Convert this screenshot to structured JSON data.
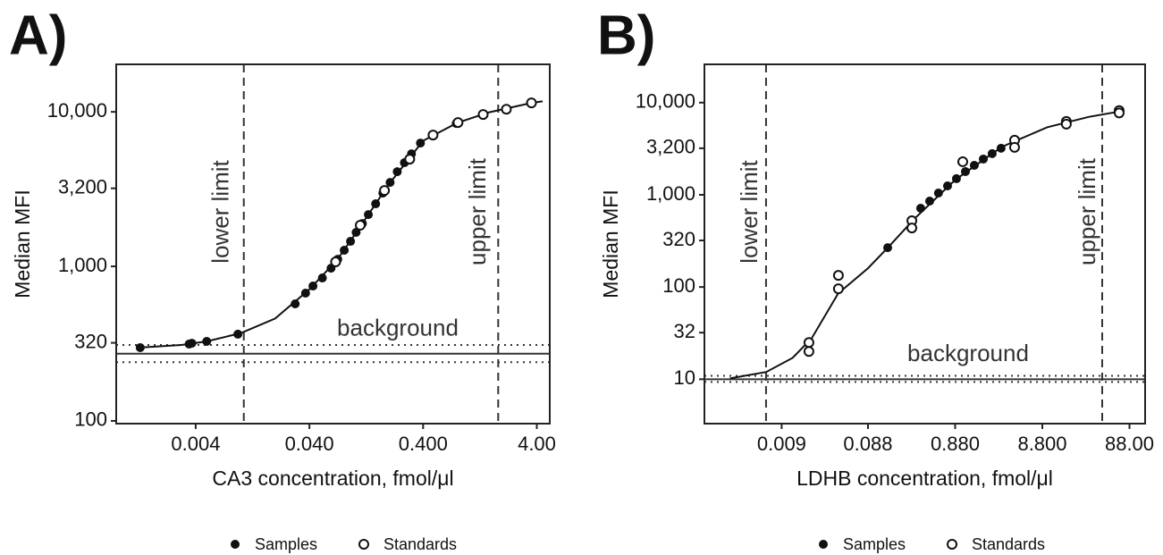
{
  "chart_data": [
    {
      "type": "scatter",
      "title": "A)",
      "ylabel": "Median MFI",
      "xlabel": "CA3 concentration, fmol/μl",
      "xlog": true,
      "ylog": true,
      "grid": false,
      "xlim": [
        0.0008,
        5.2
      ],
      "ylim": [
        96,
        20300
      ],
      "xticks": [
        0.004,
        {
          "value": 0.04,
          "label": "0.040"
        },
        {
          "value": 0.4,
          "label": "0.400"
        },
        {
          "value": 4,
          "label": "4.00"
        }
      ],
      "yticks": [
        100,
        320,
        {
          "value": 1000,
          "label": "1,000"
        },
        {
          "value": 3200,
          "label": "3,200"
        },
        {
          "value": 10000,
          "label": "10,000"
        }
      ],
      "series": [
        {
          "name": "Samples",
          "marker": "filled",
          "color": "#111111",
          "x": [
            0.0013,
            0.0035,
            0.0037,
            0.005,
            0.0094,
            0.03,
            0.037,
            0.043,
            0.052,
            0.062,
            0.071,
            0.081,
            0.092,
            0.103,
            0.117,
            0.132,
            0.153,
            0.177,
            0.205,
            0.237,
            0.274,
            0.316,
            0.379,
            0.782
          ],
          "values": [
            298,
            314,
            318,
            327,
            364,
            572,
            671,
            746,
            841,
            973,
            1112,
            1271,
            1452,
            1660,
            1894,
            2163,
            2541,
            2979,
            3493,
            4102,
            4688,
            5346,
            6281,
            8414
          ]
        },
        {
          "name": "Standards",
          "marker": "open",
          "color": "#111111",
          "x": [
            0.068,
            0.112,
            0.183,
            0.305,
            0.489,
            0.811,
            1.35,
            2.16,
            3.59
          ],
          "values": [
            1069,
            1845,
            3099,
            4942,
            7079,
            8531,
            9616,
            10400,
            11430
          ]
        }
      ],
      "curve": {
        "color": "#111111",
        "x": [
          0.0013,
          0.003,
          0.005,
          0.01,
          0.02,
          0.04,
          0.07,
          0.1,
          0.2,
          0.4,
          0.8,
          1.5,
          3.6,
          4.5
        ],
        "values": [
          298,
          310,
          327,
          370,
          460,
          710,
          1100,
          1600,
          3400,
          6500,
          8500,
          9900,
          11430,
          11700
        ]
      },
      "limits": [
        {
          "value": 0.0106,
          "label": "lower limit"
        },
        {
          "value": 1.83,
          "label": "upper limit"
        }
      ],
      "background": {
        "value": 272,
        "lower": 240,
        "upper": 310,
        "label": "background"
      }
    },
    {
      "type": "scatter",
      "title": "B)",
      "ylabel": "Median MFI",
      "xlabel": "LDHB concentration, fmol/μl",
      "xlog": true,
      "ylog": true,
      "grid": false,
      "xlim": [
        0.00117,
        133
      ],
      "ylim": [
        3.3,
        26000
      ],
      "xticks": [
        0.009,
        0.088,
        {
          "value": 0.88,
          "label": "0.880"
        },
        {
          "value": 8.8,
          "label": "8.800"
        },
        {
          "value": 88,
          "label": "88.00"
        }
      ],
      "yticks": [
        10,
        32,
        100,
        320,
        {
          "value": 1000,
          "label": "1,000"
        },
        {
          "value": 3200,
          "label": "3,200"
        },
        {
          "value": 10000,
          "label": "10,000"
        }
      ],
      "series": [
        {
          "name": "Samples",
          "marker": "filled",
          "color": "#111111",
          "x": [
            0.1481,
            0.354,
            0.449,
            0.566,
            0.72,
            0.911,
            1.155,
            1.46,
            1.852,
            2.34,
            2.96
          ],
          "values": [
            267,
            715,
            855,
            1045,
            1250,
            1496,
            1787,
            2089,
            2443,
            2797,
            3199
          ]
        },
        {
          "name": "Standards",
          "marker": "open",
          "color": "#111111",
          "x": [
            0.0185,
            0.0185,
            0.0403,
            0.0403,
            0.2804,
            0.2804,
            1.076,
            4.23,
            4.23,
            16.6,
            16.6,
            67.0,
            67.0
          ],
          "values": [
            25.0,
            20.0,
            133.7,
            95.7,
            523,
            437,
            2286,
            3908,
            3273,
            6252,
            5846,
            8185,
            7731
          ]
        }
      ],
      "curve": {
        "color": "#111111",
        "x": [
          0.0023,
          0.006,
          0.012,
          0.02,
          0.04,
          0.088,
          0.15,
          0.3,
          0.88,
          3,
          10,
          30,
          67
        ],
        "values": [
          10.2,
          12,
          17,
          28,
          85,
          160,
          270,
          550,
          1450,
          3300,
          5400,
          7000,
          8000
        ]
      },
      "limits": [
        {
          "value": 0.00596,
          "label": "lower limit"
        },
        {
          "value": 42.8,
          "label": "upper limit"
        }
      ],
      "background": {
        "value": 10,
        "lower": 9.35,
        "upper": 10.9,
        "label": "background"
      }
    }
  ]
}
